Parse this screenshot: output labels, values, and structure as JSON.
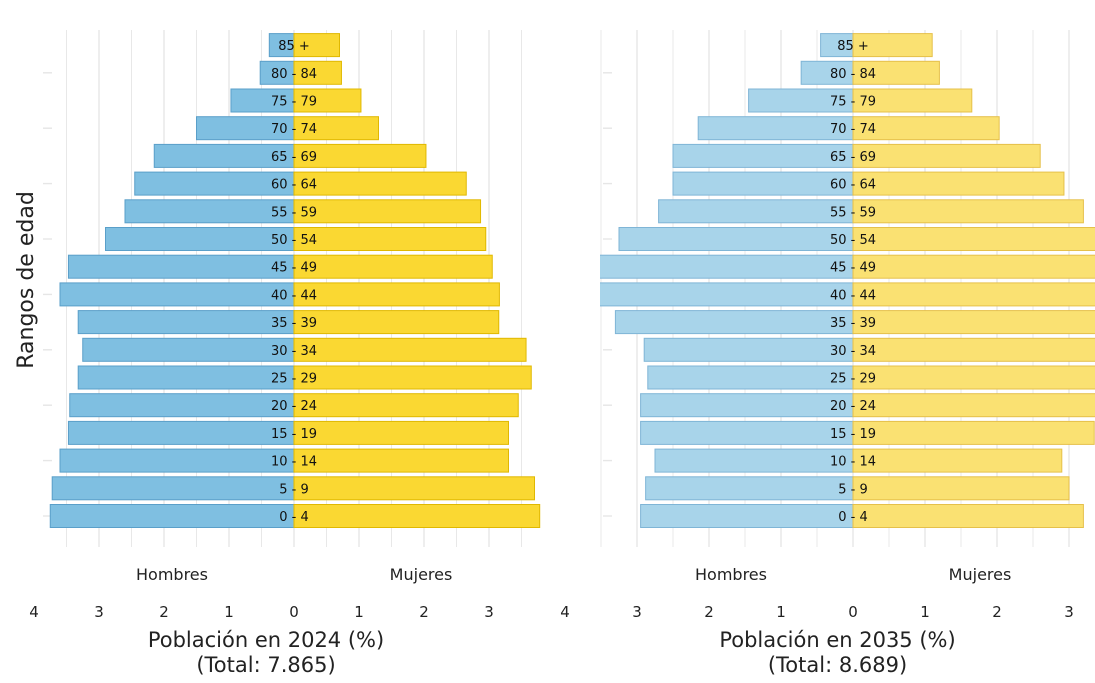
{
  "ylabel": "Rangos de edad",
  "colors": {
    "male": "#7fbfe1",
    "male_edge": "#5a9fc9",
    "male_light": "#a8d4ea",
    "male_light_edge": "#7fb5d6",
    "female": "#fad832",
    "female_edge": "#e0b800",
    "female_light": "#fae172",
    "female_light_edge": "#e5c04a",
    "grid": "#e6e6e6"
  },
  "chart_data": [
    {
      "type": "bar",
      "orientation": "horizontal-diverging",
      "categories": [
        "0 - 4",
        "5 - 9",
        "10 - 14",
        "15 - 19",
        "20 - 24",
        "25 - 29",
        "30 - 34",
        "35 - 39",
        "40 - 44",
        "45 - 49",
        "50 - 54",
        "55 - 59",
        "60 - 64",
        "65 - 69",
        "70 - 74",
        "75 - 79",
        "80 - 84",
        "85 +"
      ],
      "series": [
        {
          "name": "Hombres",
          "values": [
            3.75,
            3.72,
            3.6,
            3.47,
            3.45,
            3.32,
            3.25,
            3.32,
            3.6,
            3.47,
            2.9,
            2.6,
            2.45,
            2.15,
            1.5,
            0.97,
            0.52,
            0.38
          ]
        },
        {
          "name": "Mujeres",
          "values": [
            3.78,
            3.7,
            3.3,
            3.3,
            3.45,
            3.65,
            3.57,
            3.15,
            3.16,
            3.05,
            2.95,
            2.87,
            2.65,
            2.03,
            1.3,
            1.03,
            0.73,
            0.7
          ]
        }
      ],
      "xlabel": "Población en 2024 (%)",
      "xlabel_sub": "(Total: 7.865)",
      "group_labels": {
        "left": "Hombres",
        "right": "Mujeres"
      },
      "left_ticks": [
        4,
        3,
        2,
        1,
        0
      ],
      "right_ticks": [
        1,
        2,
        3
      ],
      "xlim": [
        -3.8,
        3.8
      ]
    },
    {
      "type": "bar",
      "orientation": "horizontal-diverging",
      "categories": [
        "0 - 4",
        "5 - 9",
        "10 - 14",
        "15 - 19",
        "20 - 24",
        "25 - 29",
        "30 - 34",
        "35 - 39",
        "40 - 44",
        "45 - 49",
        "50 - 54",
        "55 - 59",
        "60 - 64",
        "65 - 69",
        "70 - 74",
        "75 - 79",
        "80 - 84",
        "85 +"
      ],
      "series": [
        {
          "name": "Hombres",
          "values": [
            2.95,
            2.88,
            2.75,
            2.95,
            2.95,
            2.85,
            2.9,
            3.3,
            3.75,
            3.7,
            3.25,
            2.7,
            2.5,
            2.5,
            2.15,
            1.45,
            0.72,
            0.45
          ]
        },
        {
          "name": "Mujeres",
          "values": [
            3.2,
            3.0,
            2.9,
            3.35,
            3.5,
            3.57,
            3.58,
            3.57,
            3.57,
            3.57,
            3.4,
            3.2,
            2.93,
            2.6,
            2.03,
            1.65,
            1.2,
            1.1
          ]
        }
      ],
      "xlabel": "Población en 2035 (%)",
      "xlabel_sub": "(Total: 8.689)",
      "group_labels": {
        "left": "Hombres",
        "right": "Mujeres"
      },
      "left_ticks": [
        4,
        3,
        2,
        1,
        0
      ],
      "right_ticks": [
        1,
        2,
        3
      ],
      "xlim": [
        -3.8,
        3.8
      ]
    }
  ]
}
